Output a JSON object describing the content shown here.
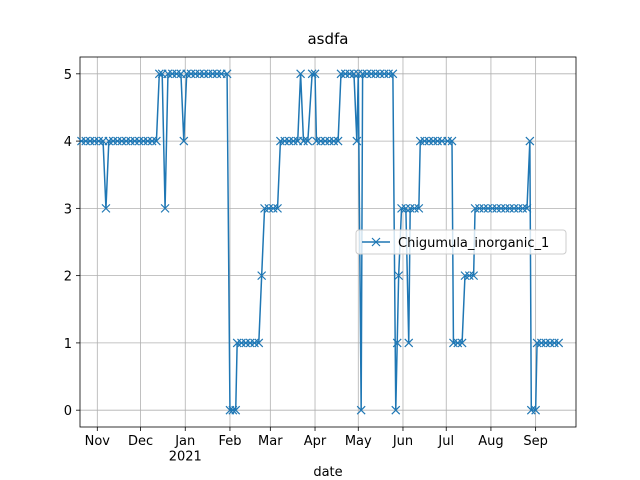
{
  "chart_data": {
    "type": "line",
    "title": "asdfa",
    "x_label": "date",
    "x": [
      "2020-10-21",
      "2020-10-24",
      "2020-10-27",
      "2020-10-30",
      "2020-11-02",
      "2020-11-05",
      "2020-11-07",
      "2020-11-09",
      "2020-11-12",
      "2020-11-15",
      "2020-11-18",
      "2020-11-21",
      "2020-11-24",
      "2020-11-27",
      "2020-11-30",
      "2020-12-03",
      "2020-12-06",
      "2020-12-09",
      "2020-12-12",
      "2020-12-14",
      "2020-12-16",
      "2020-12-18",
      "2020-12-20",
      "2020-12-23",
      "2020-12-26",
      "2020-12-29",
      "2020-12-31",
      "2021-01-02",
      "2021-01-05",
      "2021-01-08",
      "2021-01-11",
      "2021-01-14",
      "2021-01-17",
      "2021-01-20",
      "2021-01-23",
      "2021-01-26",
      "2021-01-30",
      "2021-02-01",
      "2021-02-03",
      "2021-02-05",
      "2021-02-06",
      "2021-02-09",
      "2021-02-12",
      "2021-02-15",
      "2021-02-18",
      "2021-02-21",
      "2021-02-23",
      "2021-02-25",
      "2021-02-28",
      "2021-03-03",
      "2021-03-06",
      "2021-03-08",
      "2021-03-11",
      "2021-03-14",
      "2021-03-17",
      "2021-03-20",
      "2021-03-22",
      "2021-03-24",
      "2021-03-27",
      "2021-03-30",
      "2021-04-01",
      "2021-04-02",
      "2021-04-05",
      "2021-04-08",
      "2021-04-11",
      "2021-04-14",
      "2021-04-17",
      "2021-04-19",
      "2021-04-22",
      "2021-04-25",
      "2021-04-28",
      "2021-04-30",
      "2021-05-01",
      "2021-05-03",
      "2021-05-04",
      "2021-05-07",
      "2021-05-10",
      "2021-05-13",
      "2021-05-16",
      "2021-05-19",
      "2021-05-22",
      "2021-05-25",
      "2021-05-27",
      "2021-05-28",
      "2021-05-29",
      "2021-05-31",
      "2021-06-03",
      "2021-06-05",
      "2021-06-06",
      "2021-06-09",
      "2021-06-12",
      "2021-06-13",
      "2021-06-16",
      "2021-06-19",
      "2021-06-22",
      "2021-06-25",
      "2021-06-28",
      "2021-07-02",
      "2021-07-05",
      "2021-07-06",
      "2021-07-09",
      "2021-07-12",
      "2021-07-14",
      "2021-07-17",
      "2021-07-20",
      "2021-07-21",
      "2021-07-24",
      "2021-07-27",
      "2021-07-30",
      "2021-08-02",
      "2021-08-05",
      "2021-08-08",
      "2021-08-11",
      "2021-08-14",
      "2021-08-17",
      "2021-08-20",
      "2021-08-23",
      "2021-08-26",
      "2021-08-28",
      "2021-08-29",
      "2021-09-01",
      "2021-09-02",
      "2021-09-05",
      "2021-09-08",
      "2021-09-11",
      "2021-09-14",
      "2021-09-17"
    ],
    "series": [
      {
        "name": "Chigumula_inorganic_1",
        "color": "#1f77b4",
        "marker": "x",
        "values": [
          4,
          4,
          4,
          4,
          4,
          4,
          3,
          4,
          4,
          4,
          4,
          4,
          4,
          4,
          4,
          4,
          4,
          4,
          4,
          5,
          5,
          3,
          5,
          5,
          5,
          5,
          4,
          5,
          5,
          5,
          5,
          5,
          5,
          5,
          5,
          5,
          5,
          0,
          0,
          0,
          1,
          1,
          1,
          1,
          1,
          1,
          2,
          3,
          3,
          3,
          3,
          4,
          4,
          4,
          4,
          4,
          5,
          4,
          4,
          5,
          5,
          4,
          4,
          4,
          4,
          4,
          4,
          5,
          5,
          5,
          5,
          4,
          5,
          0,
          5,
          5,
          5,
          5,
          5,
          5,
          5,
          5,
          0,
          1,
          2,
          3,
          3,
          1,
          3,
          3,
          3,
          4,
          4,
          4,
          4,
          4,
          4,
          4,
          4,
          1,
          1,
          1,
          2,
          2,
          2,
          3,
          3,
          3,
          3,
          3,
          3,
          3,
          3,
          3,
          3,
          3,
          3,
          3,
          4,
          0,
          0,
          1,
          1,
          1,
          1,
          1,
          1
        ]
      }
    ],
    "xlim": [
      "2020-10-20",
      "2021-09-29"
    ],
    "xticks": [
      {
        "value": "2020-11-01",
        "label": "Nov"
      },
      {
        "value": "2020-12-01",
        "label": "Dec"
      },
      {
        "value": "2021-01-01",
        "label": "Jan\n2021"
      },
      {
        "value": "2021-02-01",
        "label": "Feb"
      },
      {
        "value": "2021-03-01",
        "label": "Mar"
      },
      {
        "value": "2021-04-01",
        "label": "Apr"
      },
      {
        "value": "2021-05-01",
        "label": "May"
      },
      {
        "value": "2021-06-01",
        "label": "Jun"
      },
      {
        "value": "2021-07-01",
        "label": "Jul"
      },
      {
        "value": "2021-08-01",
        "label": "Aug"
      },
      {
        "value": "2021-09-01",
        "label": "Sep"
      }
    ],
    "ylim": [
      -0.25,
      5.25
    ],
    "yticks": [
      0,
      1,
      2,
      3,
      4,
      5
    ],
    "grid": true,
    "legend": "center right"
  }
}
